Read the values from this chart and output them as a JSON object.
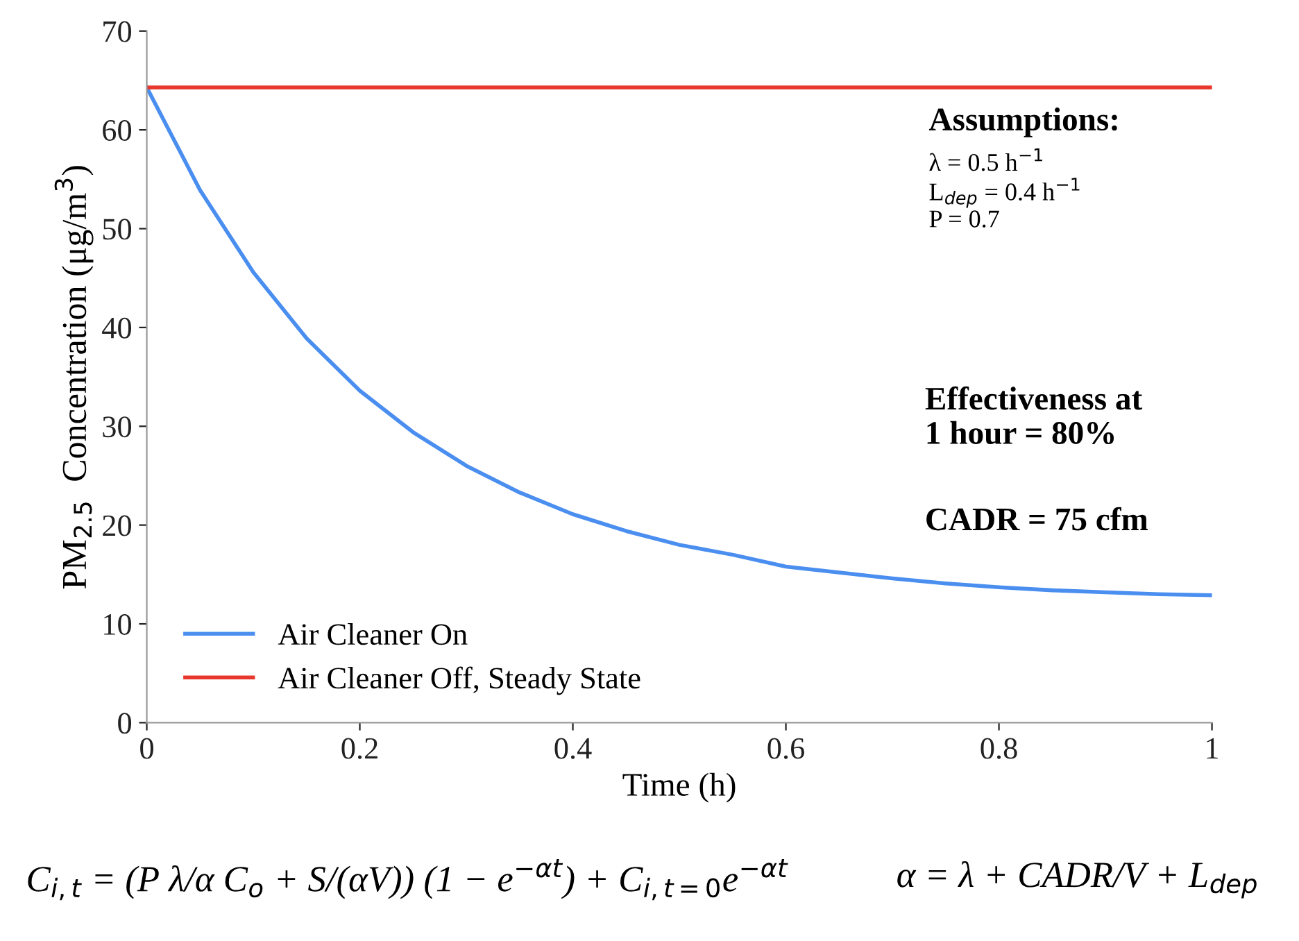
{
  "chart_data": {
    "type": "line",
    "xlabel": "Time (h)",
    "ylabel": "PM$_{2.5}$  Concentration (μg/m$^{3}$)",
    "x": [
      0,
      0.05,
      0.1,
      0.15,
      0.2,
      0.25,
      0.3,
      0.35,
      0.4,
      0.45,
      0.5,
      0.55,
      0.6,
      0.65,
      0.7,
      0.75,
      0.8,
      0.85,
      0.9,
      0.95,
      1
    ],
    "series": [
      {
        "name": "Air Cleaner On",
        "color": "#4a8ef0",
        "values": [
          64.3,
          53.9,
          45.6,
          38.9,
          33.6,
          29.4,
          26.0,
          23.3,
          21.1,
          19.4,
          18.0,
          17.0,
          15.8,
          15.2,
          14.6,
          14.1,
          13.7,
          13.4,
          13.2,
          13.0,
          12.9
        ]
      },
      {
        "name": "Air Cleaner Off, Steady State",
        "color": "#e8372c",
        "values": [
          64.3,
          64.3,
          64.3,
          64.3,
          64.3,
          64.3,
          64.3,
          64.3,
          64.3,
          64.3,
          64.3,
          64.3,
          64.3,
          64.3,
          64.3,
          64.3,
          64.3,
          64.3,
          64.3,
          64.3,
          64.3
        ]
      }
    ],
    "xlim": [
      0,
      1
    ],
    "xticks": [
      0,
      0.2,
      0.4,
      0.6,
      0.8,
      1
    ],
    "ylim": [
      0,
      70
    ],
    "yticks": [
      0,
      10,
      20,
      30,
      40,
      50,
      60,
      70
    ],
    "grid": false,
    "legend": "bottom left",
    "marker": "none",
    "line_style": "solid",
    "annotations": [
      "Assumptions:",
      "λ = 0.5 h$^{−1}$",
      "L$_{dep}$ = 0.4 h$^{−1}$",
      "P = 0.7",
      "Effectiveness at\n1 hour = 80%",
      "CADR = 75 cfm",
      "C$_{i,t}$ = (P λ/α C$_{o}$ + S/(αV)) (1 − e$^{−αt}$) + C$_{i,t=0}$e$^{−αt}$",
      "α = λ + CADR/V + L$_{dep}$"
    ]
  }
}
